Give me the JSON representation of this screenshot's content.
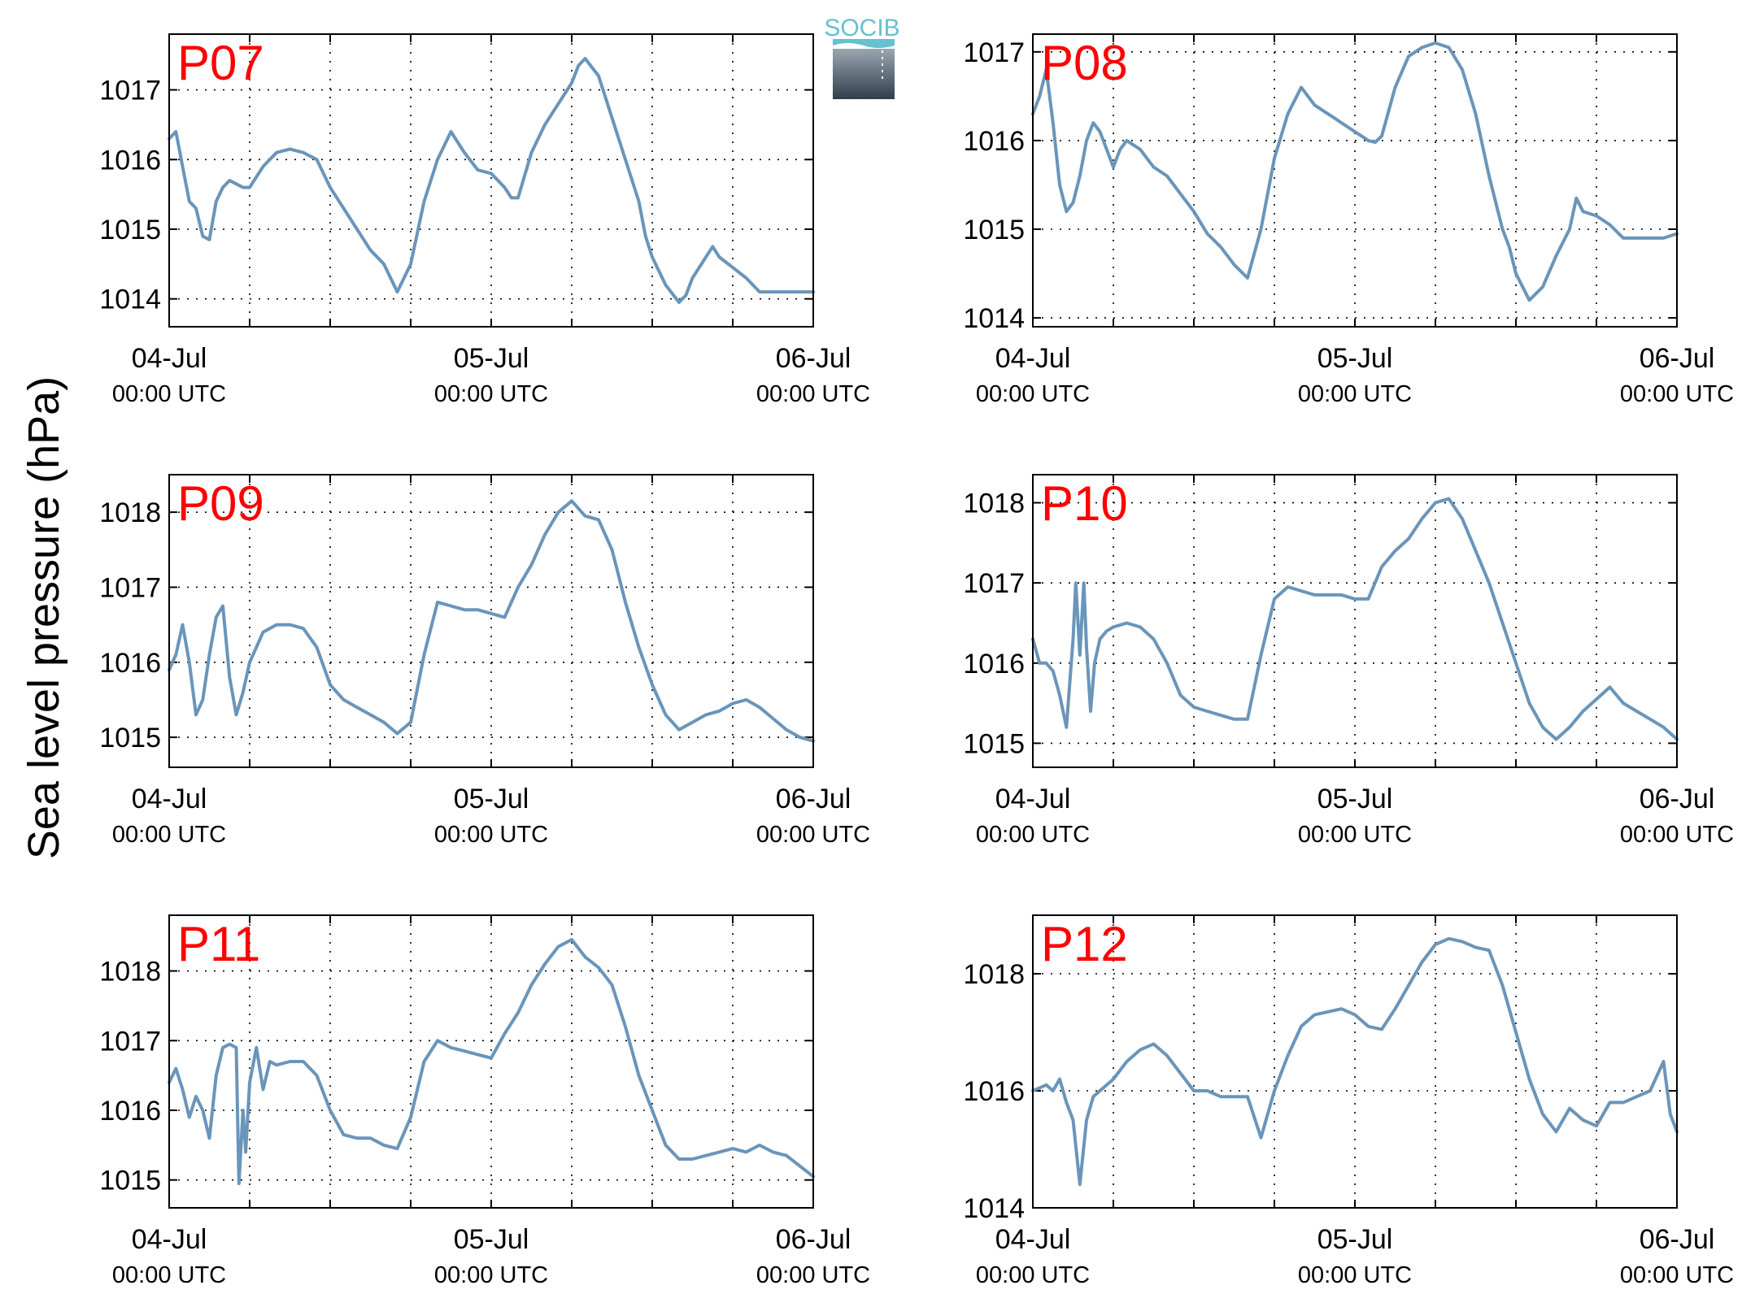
{
  "figure": {
    "ylabel": "Sea level pressure (hPa)",
    "logo_text": "SOCIB"
  },
  "colors": {
    "line": "#6a95ba",
    "title": "#ff0000",
    "logo": "#66c0d0"
  },
  "chart_data": [
    {
      "type": "line",
      "title": "P07",
      "xlim": [
        0,
        48
      ],
      "ylim": [
        1013.6,
        1017.8
      ],
      "yticks": [
        1014,
        1015,
        1016,
        1017
      ],
      "xticks": [
        0,
        24,
        48
      ],
      "minor_xticks": [
        6,
        12,
        18,
        30,
        36,
        42
      ],
      "xtick_labels": [
        "04-Jul",
        "05-Jul",
        "06-Jul"
      ],
      "xtick_sublabels": [
        "00:00 UTC",
        "00:00 UTC",
        "00:00 UTC"
      ],
      "grid": true,
      "series": [
        {
          "x": [
            0,
            0.5,
            1,
            1.5,
            2,
            2.5,
            3,
            3.5,
            4,
            4.5,
            5,
            5.5,
            6,
            7,
            8,
            9,
            10,
            11,
            12,
            13,
            14,
            15,
            15.5,
            16,
            16.5,
            17,
            17.5,
            18,
            19,
            20,
            21,
            22,
            23,
            24,
            25,
            25.5,
            26,
            27,
            28,
            29,
            30,
            30.5,
            31,
            32,
            33,
            34,
            35,
            35.5,
            36,
            37,
            38,
            38.5,
            39,
            40,
            40.5,
            41,
            42,
            43,
            44,
            45,
            46,
            47,
            48
          ],
          "y": [
            1016.3,
            1016.4,
            1015.9,
            1015.4,
            1015.3,
            1014.9,
            1014.85,
            1015.4,
            1015.6,
            1015.7,
            1015.65,
            1015.6,
            1015.6,
            1015.9,
            1016.1,
            1016.15,
            1016.1,
            1016.0,
            1015.6,
            1015.3,
            1015.0,
            1014.7,
            1014.6,
            1014.5,
            1014.3,
            1014.1,
            1014.3,
            1014.5,
            1015.4,
            1016.0,
            1016.4,
            1016.1,
            1015.85,
            1015.8,
            1015.6,
            1015.45,
            1015.45,
            1016.1,
            1016.5,
            1016.8,
            1017.1,
            1017.35,
            1017.45,
            1017.2,
            1016.6,
            1016.0,
            1015.4,
            1014.9,
            1014.6,
            1014.2,
            1013.95,
            1014.05,
            1014.3,
            1014.6,
            1014.75,
            1014.6,
            1014.45,
            1014.3,
            1014.1,
            1014.1,
            1014.1,
            1014.1,
            1014.1
          ]
        }
      ]
    },
    {
      "type": "line",
      "title": "P08",
      "xlim": [
        0,
        48
      ],
      "ylim": [
        1013.9,
        1017.2
      ],
      "yticks": [
        1014,
        1015,
        1016,
        1017
      ],
      "xticks": [
        0,
        24,
        48
      ],
      "minor_xticks": [
        6,
        12,
        18,
        30,
        36,
        42
      ],
      "xtick_labels": [
        "04-Jul",
        "05-Jul",
        "06-Jul"
      ],
      "xtick_sublabels": [
        "00:00 UTC",
        "00:00 UTC",
        "00:00 UTC"
      ],
      "grid": true,
      "series": [
        {
          "x": [
            0,
            0.5,
            1,
            1.5,
            2,
            2.5,
            3,
            3.5,
            4,
            4.5,
            5,
            5.5,
            6,
            6.5,
            7,
            7.5,
            8,
            9,
            10,
            11,
            12,
            13,
            14,
            15,
            16,
            17,
            18,
            19,
            20,
            20.5,
            21,
            22,
            22.5,
            23,
            24,
            25,
            25.5,
            26,
            27,
            28,
            29,
            30,
            31,
            32,
            33,
            34,
            35,
            35.5,
            36,
            37,
            38,
            39,
            40,
            40.5,
            41,
            42,
            43,
            44,
            45,
            46,
            47,
            48
          ],
          "y": [
            1016.3,
            1016.5,
            1016.8,
            1016.2,
            1015.5,
            1015.2,
            1015.3,
            1015.6,
            1016.0,
            1016.2,
            1016.1,
            1015.9,
            1015.7,
            1015.9,
            1016.0,
            1015.95,
            1015.9,
            1015.7,
            1015.6,
            1015.4,
            1015.2,
            1014.95,
            1014.8,
            1014.6,
            1014.45,
            1015.0,
            1015.8,
            1016.3,
            1016.6,
            1016.5,
            1016.4,
            1016.3,
            1016.25,
            1016.2,
            1016.1,
            1016.0,
            1015.98,
            1016.05,
            1016.6,
            1016.95,
            1017.05,
            1017.1,
            1017.05,
            1016.8,
            1016.3,
            1015.6,
            1015.0,
            1014.8,
            1014.5,
            1014.2,
            1014.35,
            1014.7,
            1015.0,
            1015.35,
            1015.2,
            1015.15,
            1015.05,
            1014.9,
            1014.9,
            1014.9,
            1014.9,
            1014.95
          ]
        }
      ]
    },
    {
      "type": "line",
      "title": "P09",
      "xlim": [
        0,
        48
      ],
      "ylim": [
        1014.6,
        1018.5
      ],
      "yticks": [
        1015,
        1016,
        1017,
        1018
      ],
      "xticks": [
        0,
        24,
        48
      ],
      "minor_xticks": [
        6,
        12,
        18,
        30,
        36,
        42
      ],
      "xtick_labels": [
        "04-Jul",
        "05-Jul",
        "06-Jul"
      ],
      "xtick_sublabels": [
        "00:00 UTC",
        "00:00 UTC",
        "00:00 UTC"
      ],
      "grid": true,
      "series": [
        {
          "x": [
            0,
            0.5,
            1,
            1.5,
            2,
            2.5,
            3,
            3.5,
            4,
            4.5,
            5,
            5.5,
            6,
            7,
            8,
            9,
            10,
            11,
            12,
            13,
            14,
            15,
            16,
            17,
            18,
            19,
            20,
            21,
            22,
            23,
            24,
            25,
            26,
            27,
            28,
            29,
            30,
            31,
            32,
            33,
            34,
            35,
            36,
            37,
            38,
            39,
            40,
            41,
            42,
            43,
            44,
            45,
            46,
            47,
            48
          ],
          "y": [
            1015.9,
            1016.1,
            1016.5,
            1016.0,
            1015.3,
            1015.5,
            1016.1,
            1016.6,
            1016.75,
            1015.8,
            1015.3,
            1015.6,
            1016.0,
            1016.4,
            1016.5,
            1016.5,
            1016.45,
            1016.2,
            1015.7,
            1015.5,
            1015.4,
            1015.3,
            1015.2,
            1015.05,
            1015.2,
            1016.1,
            1016.8,
            1016.75,
            1016.7,
            1016.7,
            1016.65,
            1016.6,
            1017.0,
            1017.3,
            1017.7,
            1018.0,
            1018.15,
            1017.95,
            1017.9,
            1017.5,
            1016.8,
            1016.2,
            1015.7,
            1015.3,
            1015.1,
            1015.2,
            1015.3,
            1015.35,
            1015.45,
            1015.5,
            1015.4,
            1015.25,
            1015.1,
            1015.0,
            1014.95
          ]
        }
      ]
    },
    {
      "type": "line",
      "title": "P10",
      "xlim": [
        0,
        48
      ],
      "ylim": [
        1014.7,
        1018.35
      ],
      "yticks": [
        1015,
        1016,
        1017,
        1018
      ],
      "xticks": [
        0,
        24,
        48
      ],
      "minor_xticks": [
        6,
        12,
        18,
        30,
        36,
        42
      ],
      "xtick_labels": [
        "04-Jul",
        "05-Jul",
        "06-Jul"
      ],
      "xtick_sublabels": [
        "00:00 UTC",
        "00:00 UTC",
        "00:00 UTC"
      ],
      "grid": true,
      "series": [
        {
          "x": [
            0,
            0.5,
            1,
            1.5,
            2,
            2.5,
            3,
            3.2,
            3.5,
            3.8,
            4,
            4.3,
            4.6,
            5,
            5.5,
            6,
            7,
            8,
            9,
            10,
            11,
            12,
            13,
            14,
            15,
            16,
            17,
            18,
            19,
            20,
            21,
            22,
            23,
            24,
            25,
            26,
            27,
            28,
            29,
            30,
            31,
            32,
            33,
            34,
            35,
            36,
            37,
            38,
            39,
            40,
            41,
            42,
            43,
            44,
            45,
            46,
            47,
            48
          ],
          "y": [
            1016.3,
            1016.0,
            1016.0,
            1015.9,
            1015.6,
            1015.2,
            1016.3,
            1017.0,
            1016.1,
            1017.0,
            1016.2,
            1015.4,
            1016.0,
            1016.3,
            1016.4,
            1016.45,
            1016.5,
            1016.45,
            1016.3,
            1016.0,
            1015.6,
            1015.45,
            1015.4,
            1015.35,
            1015.3,
            1015.3,
            1016.1,
            1016.8,
            1016.95,
            1016.9,
            1016.85,
            1016.85,
            1016.85,
            1016.8,
            1016.8,
            1017.2,
            1017.4,
            1017.55,
            1017.8,
            1018.0,
            1018.05,
            1017.8,
            1017.4,
            1017.0,
            1016.5,
            1016.0,
            1015.5,
            1015.2,
            1015.05,
            1015.2,
            1015.4,
            1015.55,
            1015.7,
            1015.5,
            1015.4,
            1015.3,
            1015.2,
            1015.05
          ]
        }
      ]
    },
    {
      "type": "line",
      "title": "P11",
      "xlim": [
        0,
        48
      ],
      "ylim": [
        1014.6,
        1018.8
      ],
      "yticks": [
        1015,
        1016,
        1017,
        1018
      ],
      "xticks": [
        0,
        24,
        48
      ],
      "minor_xticks": [
        6,
        12,
        18,
        30,
        36,
        42
      ],
      "xtick_labels": [
        "04-Jul",
        "05-Jul",
        "06-Jul"
      ],
      "xtick_sublabels": [
        "00:00 UTC",
        "00:00 UTC",
        "00:00 UTC"
      ],
      "grid": true,
      "series": [
        {
          "x": [
            0,
            0.5,
            1,
            1.5,
            2,
            2.5,
            3,
            3.5,
            4,
            4.5,
            5,
            5.2,
            5.5,
            5.7,
            6,
            6.5,
            7,
            7.5,
            8,
            9,
            10,
            11,
            12,
            13,
            14,
            15,
            16,
            17,
            18,
            19,
            20,
            21,
            22,
            23,
            24,
            25,
            26,
            27,
            28,
            29,
            30,
            31,
            32,
            33,
            34,
            35,
            36,
            37,
            38,
            39,
            40,
            41,
            42,
            43,
            44,
            45,
            46,
            47,
            48
          ],
          "y": [
            1016.4,
            1016.6,
            1016.3,
            1015.9,
            1016.2,
            1016.0,
            1015.6,
            1016.5,
            1016.9,
            1016.95,
            1016.9,
            1014.95,
            1016.0,
            1015.4,
            1016.4,
            1016.9,
            1016.3,
            1016.7,
            1016.65,
            1016.7,
            1016.7,
            1016.5,
            1016.0,
            1015.65,
            1015.6,
            1015.6,
            1015.5,
            1015.45,
            1015.9,
            1016.7,
            1017.0,
            1016.9,
            1016.85,
            1016.8,
            1016.75,
            1017.1,
            1017.4,
            1017.8,
            1018.1,
            1018.35,
            1018.45,
            1018.2,
            1018.05,
            1017.8,
            1017.2,
            1016.5,
            1016.0,
            1015.5,
            1015.3,
            1015.3,
            1015.35,
            1015.4,
            1015.45,
            1015.4,
            1015.5,
            1015.4,
            1015.35,
            1015.2,
            1015.05
          ]
        }
      ]
    },
    {
      "type": "line",
      "title": "P12",
      "xlim": [
        0,
        48
      ],
      "ylim": [
        1014,
        1019
      ],
      "yticks": [
        1014,
        1016,
        1018
      ],
      "xticks": [
        0,
        24,
        48
      ],
      "minor_xticks": [
        6,
        12,
        18,
        30,
        36,
        42
      ],
      "xtick_labels": [
        "04-Jul",
        "05-Jul",
        "06-Jul"
      ],
      "xtick_sublabels": [
        "00:00 UTC",
        "00:00 UTC",
        "00:00 UTC"
      ],
      "grid": true,
      "series": [
        {
          "x": [
            0,
            0.5,
            1,
            1.5,
            2,
            2.5,
            3,
            3.5,
            4,
            4.5,
            5,
            6,
            7,
            8,
            9,
            10,
            11,
            12,
            13,
            14,
            15,
            16,
            17,
            18,
            19,
            20,
            21,
            22,
            23,
            24,
            25,
            26,
            27,
            28,
            29,
            30,
            31,
            32,
            33,
            34,
            35,
            36,
            37,
            38,
            39,
            40,
            41,
            42,
            43,
            44,
            45,
            46,
            47,
            47.5,
            48
          ],
          "y": [
            1016.0,
            1016.05,
            1016.1,
            1016.0,
            1016.2,
            1015.8,
            1015.5,
            1014.4,
            1015.5,
            1015.9,
            1016.0,
            1016.2,
            1016.5,
            1016.7,
            1016.8,
            1016.6,
            1016.3,
            1016.0,
            1016.0,
            1015.9,
            1015.9,
            1015.9,
            1015.2,
            1016.0,
            1016.6,
            1017.1,
            1017.3,
            1017.35,
            1017.4,
            1017.3,
            1017.1,
            1017.05,
            1017.4,
            1017.8,
            1018.2,
            1018.5,
            1018.6,
            1018.55,
            1018.45,
            1018.4,
            1017.8,
            1017.0,
            1016.2,
            1015.6,
            1015.3,
            1015.7,
            1015.5,
            1015.4,
            1015.8,
            1015.8,
            1015.9,
            1016.0,
            1016.5,
            1015.6,
            1015.3
          ]
        }
      ]
    }
  ]
}
